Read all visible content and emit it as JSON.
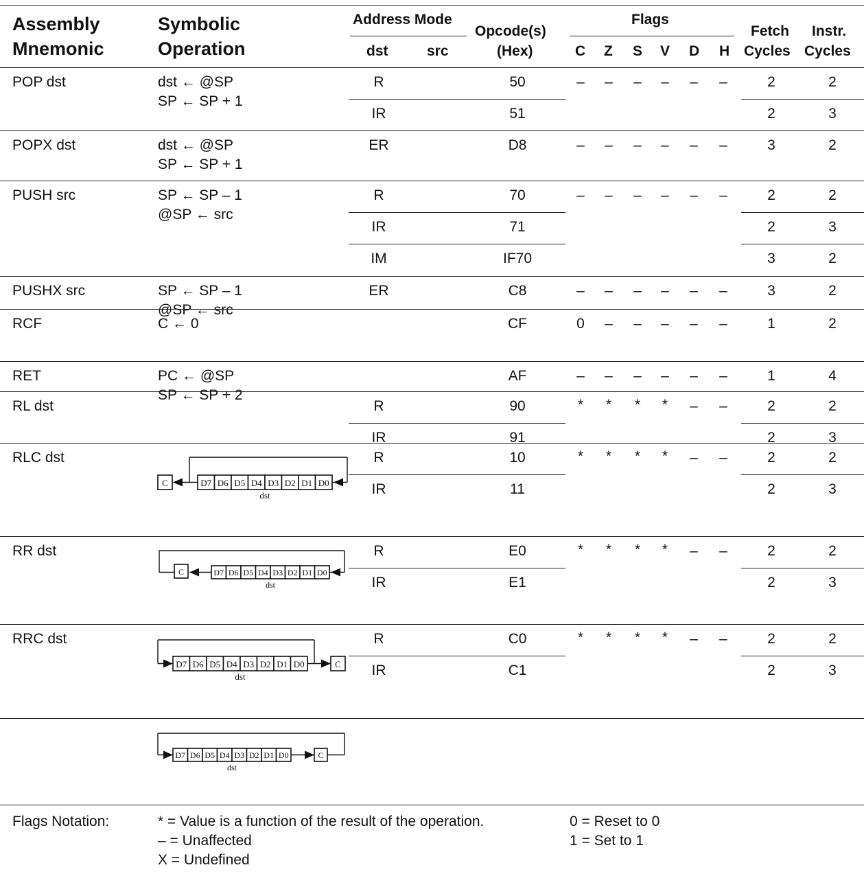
{
  "header": {
    "assembly": [
      "Assembly",
      "Mnemonic"
    ],
    "symbolic": [
      "Symbolic",
      "Operation"
    ],
    "address_mode": "Address Mode",
    "dst": "dst",
    "src": "src",
    "opcode": [
      "Opcode(s)",
      "(Hex)"
    ],
    "flags": "Flags",
    "flag_names": [
      "C",
      "Z",
      "S",
      "V",
      "D",
      "H"
    ],
    "fetch": [
      "Fetch",
      "Cycles"
    ],
    "instr": [
      "Instr.",
      "Cycles"
    ]
  },
  "rows": [
    {
      "mnemonic": "POP dst",
      "op": [
        "dst ← @SP",
        "SP ← SP + 1"
      ],
      "modes": [
        {
          "mode": "R",
          "opcode": "50",
          "fetch": "2",
          "instr": "2"
        },
        {
          "mode": "IR",
          "opcode": "51",
          "fetch": "2",
          "instr": "3"
        }
      ],
      "flags": [
        "–",
        "–",
        "–",
        "–",
        "–",
        "–"
      ]
    },
    {
      "mnemonic": "POPX dst",
      "op": [
        "dst ← @SP",
        "SP ← SP + 1"
      ],
      "modes": [
        {
          "mode": "ER",
          "opcode": "D8",
          "fetch": "3",
          "instr": "2"
        }
      ],
      "flags": [
        "–",
        "–",
        "–",
        "–",
        "–",
        "–"
      ]
    },
    {
      "mnemonic": "PUSH src",
      "op": [
        "SP ← SP – 1",
        "@SP ← src"
      ],
      "modes": [
        {
          "mode": "R",
          "opcode": "70",
          "fetch": "2",
          "instr": "2"
        },
        {
          "mode": "IR",
          "opcode": "71",
          "fetch": "2",
          "instr": "3"
        },
        {
          "mode": "IM",
          "opcode": "IF70",
          "fetch": "3",
          "instr": "2"
        }
      ],
      "flags": [
        "–",
        "–",
        "–",
        "–",
        "–",
        "–"
      ]
    },
    {
      "mnemonic": "PUSHX src",
      "op": [
        "SP ← SP – 1",
        "@SP ← src"
      ],
      "modes": [
        {
          "mode": "ER",
          "opcode": "C8",
          "fetch": "3",
          "instr": "2"
        }
      ],
      "flags": [
        "–",
        "–",
        "–",
        "–",
        "–",
        "–"
      ]
    },
    {
      "mnemonic": "RCF",
      "op": [
        "C ← 0"
      ],
      "modes": [
        {
          "mode": "",
          "opcode": "CF",
          "fetch": "1",
          "instr": "2"
        }
      ],
      "flags": [
        "0",
        "–",
        "–",
        "–",
        "–",
        "–"
      ]
    },
    {
      "mnemonic": "RET",
      "op": [
        "PC ← @SP",
        "SP ← SP + 2"
      ],
      "modes": [
        {
          "mode": "",
          "opcode": "AF",
          "fetch": "1",
          "instr": "4"
        }
      ],
      "flags": [
        "–",
        "–",
        "–",
        "–",
        "–",
        "–"
      ]
    },
    {
      "mnemonic": "RL dst",
      "modes": [
        {
          "mode": "R",
          "opcode": "90",
          "fetch": "2",
          "instr": "2"
        },
        {
          "mode": "IR",
          "opcode": "91",
          "fetch": "2",
          "instr": "3"
        }
      ],
      "flags": [
        "*",
        "*",
        "*",
        "*",
        "–",
        "–"
      ]
    },
    {
      "mnemonic": "RLC dst",
      "modes": [
        {
          "mode": "R",
          "opcode": "10",
          "fetch": "2",
          "instr": "2"
        },
        {
          "mode": "IR",
          "opcode": "11",
          "fetch": "2",
          "instr": "3"
        }
      ],
      "flags": [
        "*",
        "*",
        "*",
        "*",
        "–",
        "–"
      ]
    },
    {
      "mnemonic": "RR dst",
      "modes": [
        {
          "mode": "R",
          "opcode": "E0",
          "fetch": "2",
          "instr": "2"
        },
        {
          "mode": "IR",
          "opcode": "E1",
          "fetch": "2",
          "instr": "3"
        }
      ],
      "flags": [
        "*",
        "*",
        "*",
        "*",
        "–",
        "–"
      ]
    },
    {
      "mnemonic": "RRC dst",
      "modes": [
        {
          "mode": "R",
          "opcode": "C0",
          "fetch": "2",
          "instr": "2"
        },
        {
          "mode": "IR",
          "opcode": "C1",
          "fetch": "2",
          "instr": "3"
        }
      ],
      "flags": [
        "*",
        "*",
        "*",
        "*",
        "–",
        "–"
      ]
    }
  ],
  "diagram": {
    "bits": [
      "D7",
      "D6",
      "D5",
      "D4",
      "D3",
      "D2",
      "D1",
      "D0"
    ],
    "carry": "C",
    "dst": "dst"
  },
  "notes": {
    "label": "Flags Notation:",
    "left": [
      "* = Value is a function of the result of the operation.",
      "– = Unaffected",
      "X = Undefined"
    ],
    "right": [
      "0 = Reset to 0",
      "1 = Set to 1"
    ]
  }
}
